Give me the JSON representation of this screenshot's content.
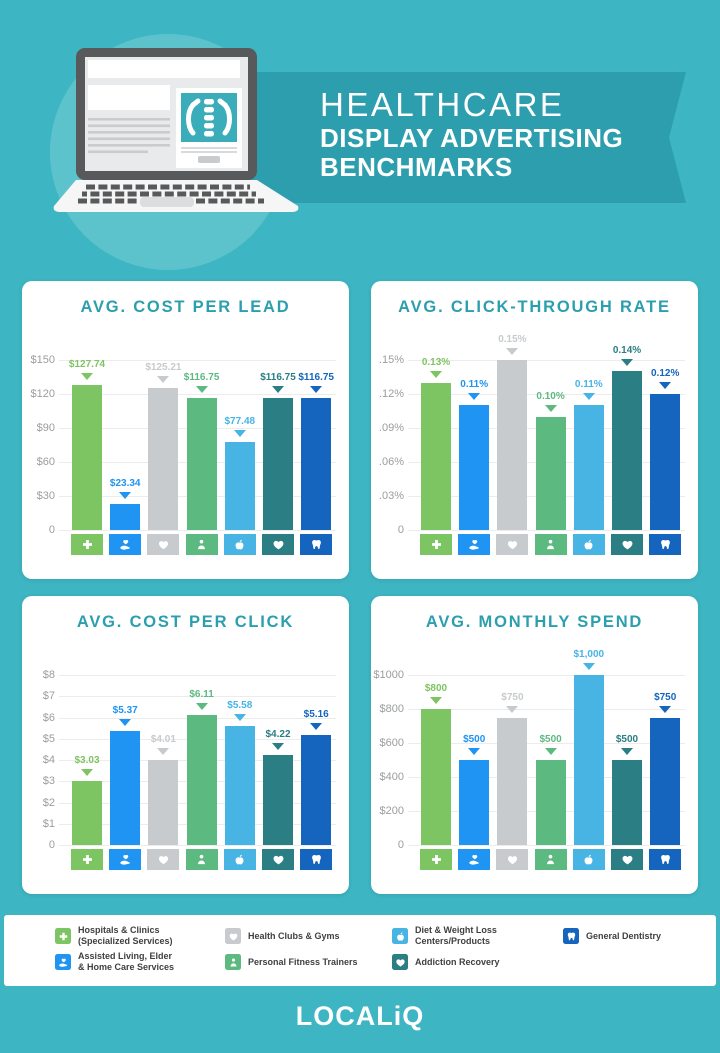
{
  "colors": {
    "background": "#3DB5C2",
    "banner": "#2D9EAD",
    "hero_circle": "#5CC3CD",
    "card": "#FFFFFF",
    "chart_title": "#2C9FAE",
    "axis_label": "#9A9DA0",
    "gridline": "#ECECEC",
    "legend_text": "#3F4041",
    "ad_screen_teal": "#3AACBA"
  },
  "header": {
    "line1": "HEALTHCARE",
    "line2": "DISPLAY ADVERTISING",
    "line3": "BENCHMARKS",
    "illustration": "laptop-with-healthcare-display-ad"
  },
  "legend": {
    "items": [
      {
        "icon": "plus-icon",
        "color": "#7DC462",
        "label_lines": [
          "Hospitals & Clinics",
          "(Specialized Services)"
        ]
      },
      {
        "icon": "hand-heart-icon",
        "color": "#1F94F2",
        "label_lines": [
          "Assisted Living, Elder",
          "& Home Care Services"
        ]
      },
      {
        "icon": "heart-icon",
        "color": "#C7CBCD",
        "label_lines": [
          "Health Clubs & Gyms"
        ]
      },
      {
        "icon": "person-icon",
        "color": "#5CBA80",
        "label_lines": [
          "Personal Fitness Trainers"
        ]
      },
      {
        "icon": "apple-icon",
        "color": "#47B4E4",
        "label_lines": [
          "Diet & Weight Loss",
          "Centers/Products"
        ]
      },
      {
        "icon": "heart-hands-icon",
        "color": "#2A7E84",
        "label_lines": [
          "Addiction Recovery"
        ]
      },
      {
        "icon": "tooth-icon",
        "color": "#1565BE",
        "label_lines": [
          "General Dentistry"
        ]
      }
    ]
  },
  "chart_data": [
    {
      "type": "bar",
      "title": "AVG. COST PER LEAD",
      "categories": [
        "Hospitals & Clinics (Specialized Services)",
        "Assisted Living, Elder & Home Care Services",
        "Health Clubs & Gyms",
        "Personal Fitness Trainers",
        "Diet & Weight Loss Centers/Products",
        "Addiction Recovery",
        "General Dentistry"
      ],
      "values": [
        127.74,
        23.34,
        125.21,
        116.75,
        77.48,
        116.75,
        116.75
      ],
      "value_labels": [
        "$127.74",
        "$23.34",
        "$125.21",
        "$116.75",
        "$77.48",
        "$116.75",
        "$116.75"
      ],
      "ytick_labels": [
        "$150",
        "$120",
        "$90",
        "$60",
        "$30",
        "0"
      ],
      "ylim": [
        0,
        150
      ],
      "grid": true,
      "legend_position": "bottom-panel"
    },
    {
      "type": "bar",
      "title": "AVG. CLICK-THROUGH RATE",
      "categories": [
        "Hospitals & Clinics (Specialized Services)",
        "Assisted Living, Elder & Home Care Services",
        "Health Clubs & Gyms",
        "Personal Fitness Trainers",
        "Diet & Weight Loss Centers/Products",
        "Addiction Recovery",
        "General Dentistry"
      ],
      "values": [
        0.13,
        0.11,
        0.15,
        0.1,
        0.11,
        0.14,
        0.12
      ],
      "value_labels": [
        "0.13%",
        "0.11%",
        "0.15%",
        "0.10%",
        "0.11%",
        "0.14%",
        "0.12%"
      ],
      "ytick_labels": [
        ".15%",
        ".12%",
        ".09%",
        ".06%",
        ".03%",
        "0"
      ],
      "ylim": [
        0,
        0.15
      ],
      "grid": true,
      "legend_position": "bottom-panel"
    },
    {
      "type": "bar",
      "title": "AVG. COST PER CLICK",
      "categories": [
        "Hospitals & Clinics (Specialized Services)",
        "Assisted Living, Elder & Home Care Services",
        "Health Clubs & Gyms",
        "Personal Fitness Trainers",
        "Diet & Weight Loss Centers/Products",
        "Addiction Recovery",
        "General Dentistry"
      ],
      "values": [
        3.03,
        5.37,
        4.01,
        6.11,
        5.58,
        4.22,
        5.16
      ],
      "value_labels": [
        "$3.03",
        "$5.37",
        "$4.01",
        "$6.11",
        "$5.58",
        "$4.22",
        "$5.16"
      ],
      "ytick_labels": [
        "$8",
        "$7",
        "$6",
        "$5",
        "$4",
        "$3",
        "$2",
        "$1",
        "0"
      ],
      "ylim": [
        0,
        8
      ],
      "grid": true,
      "legend_position": "bottom-panel"
    },
    {
      "type": "bar",
      "title": "AVG. MONTHLY SPEND",
      "categories": [
        "Hospitals & Clinics (Specialized Services)",
        "Assisted Living, Elder & Home Care Services",
        "Health Clubs & Gyms",
        "Personal Fitness Trainers",
        "Diet & Weight Loss Centers/Products",
        "Addiction Recovery",
        "General Dentistry"
      ],
      "values": [
        800,
        500,
        750,
        500,
        1000,
        500,
        750
      ],
      "value_labels": [
        "$800",
        "$500",
        "$750",
        "$500",
        "$1,000",
        "$500",
        "$750"
      ],
      "ytick_labels": [
        "$1000",
        "$800",
        "$600",
        "$400",
        "$200",
        "0"
      ],
      "ylim": [
        0,
        1000
      ],
      "grid": true,
      "legend_position": "bottom-panel"
    }
  ],
  "footer": {
    "logo_text": "LOCALiQ"
  }
}
